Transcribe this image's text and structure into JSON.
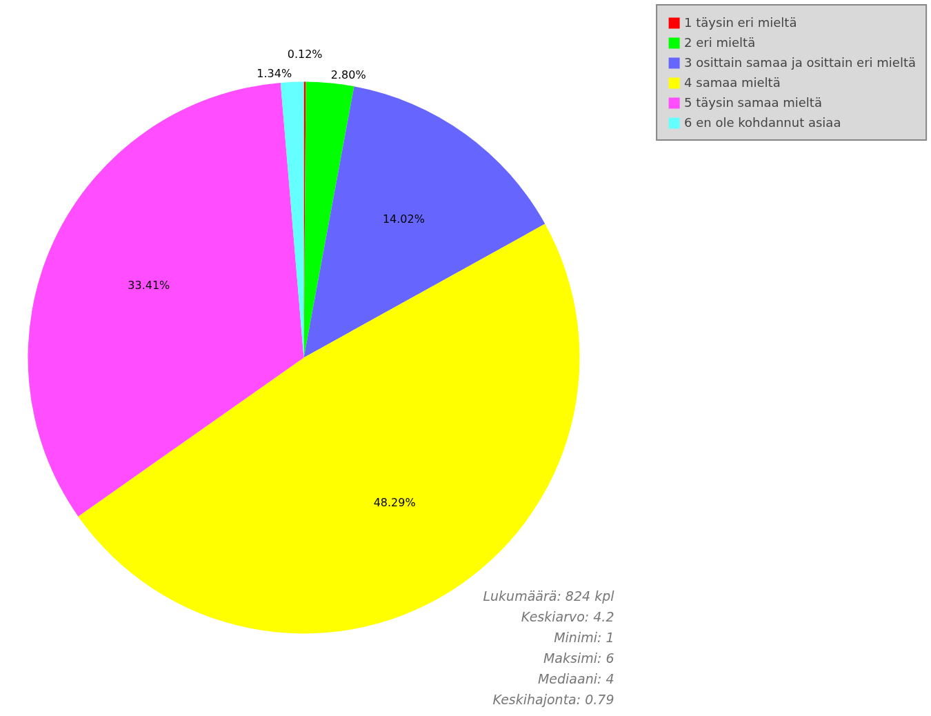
{
  "chart_data": {
    "type": "pie",
    "categories": [
      "1 täysin eri mieltä",
      "2 eri mieltä",
      "3 osittain samaa ja osittain eri mieltä",
      "4 samaa mieltä",
      "5 täysin samaa mieltä",
      "6 en ole kohdannut asiaa"
    ],
    "values": [
      0.12,
      2.8,
      14.02,
      48.29,
      33.41,
      1.34
    ],
    "colors": [
      "#ff0000",
      "#00ff00",
      "#6666ff",
      "#ffff00",
      "#ff4dff",
      "#66ffff"
    ],
    "value_labels": [
      "0.12%",
      "2.80%",
      "14.02%",
      "48.29%",
      "33.41%",
      "1.34%"
    ],
    "legend": "top right",
    "annotations": [
      "Lukumäärä: 824 kpl",
      "Keskiarvo: 4.2",
      "Minimi: 1",
      "Maksimi: 6",
      "Mediaani: 4",
      "Keskihajonta: 0.79"
    ]
  }
}
